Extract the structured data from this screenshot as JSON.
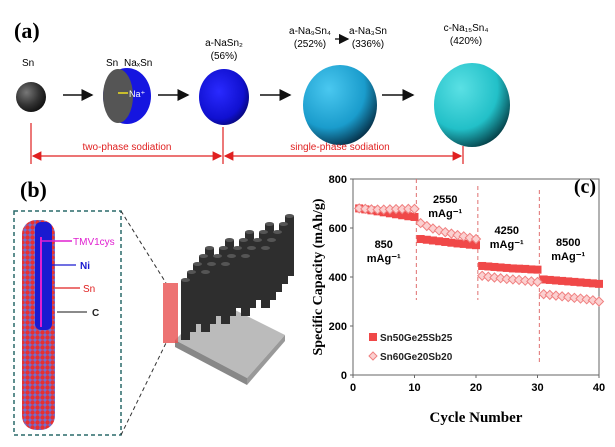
{
  "panel_a": {
    "label": "(a)",
    "sn": "Sn",
    "sn_core": "Sn",
    "naxsn": "NaₓSn",
    "na_ion": "Na⁺",
    "nasn2": "a-NaSn₂",
    "nasn2_pct": "(56%)",
    "na9sn4": "a-Na₉Sn₄",
    "na9sn4_pct": "(252%)",
    "na3sn": "a-Na₃Sn",
    "na3sn_pct": "(336%)",
    "na15sn4": "c-Na₁₅Sn₄",
    "na15sn4_pct": "(420%)",
    "two_phase": "two-phase sodiation",
    "single_phase": "single-phase sodiation",
    "colors": {
      "sn": "#333333",
      "nasn2": "#1010d8",
      "na9sn4": "#1aa6d6",
      "na15sn4": "#26c6cf",
      "bracket": "#e02020"
    }
  },
  "panel_b": {
    "label": "(b)",
    "tmv": "TMV1cys",
    "ni": "Ni",
    "sn": "Sn",
    "c": "C",
    "colors": {
      "tmv": "#e020d0",
      "ni": "#1a1ad0",
      "sn": "#e02020",
      "c": "#222222"
    }
  },
  "chart_data": {
    "type": "scatter",
    "label": "(c)",
    "xlabel": "Cycle Number",
    "ylabel": "Specific Capacity (mAh/g)",
    "xlim": [
      0,
      40
    ],
    "ylim": [
      0,
      800
    ],
    "xticks": [
      "0",
      "10",
      "20",
      "30",
      "40"
    ],
    "yticks": [
      "0",
      "200",
      "400",
      "600",
      "800"
    ],
    "legend_position": "bottom-left",
    "rate_labels": [
      {
        "value": "850",
        "unit": "mAg⁻¹"
      },
      {
        "value": "2550",
        "unit": "mAg⁻¹"
      },
      {
        "value": "4250",
        "unit": "mAg⁻¹"
      },
      {
        "value": "8500",
        "unit": "mAg⁻¹"
      }
    ],
    "rate_boundaries": [
      10.3,
      20.3,
      30.3
    ],
    "x": [
      1,
      2,
      3,
      4,
      5,
      6,
      7,
      8,
      9,
      10,
      11,
      12,
      13,
      14,
      15,
      16,
      17,
      18,
      19,
      20,
      21,
      22,
      23,
      24,
      25,
      26,
      27,
      28,
      29,
      30,
      31,
      32,
      33,
      34,
      35,
      36,
      37,
      38,
      39,
      40
    ],
    "series": [
      {
        "name": "Sn50Ge25Sb25",
        "marker": "square",
        "color": "#f04848",
        "values": [
          680,
          676,
          672,
          668,
          664,
          660,
          656,
          652,
          648,
          645,
          555,
          552,
          549,
          546,
          543,
          540,
          537,
          535,
          532,
          530,
          445,
          443,
          441,
          439,
          437,
          435,
          434,
          433,
          431,
          430,
          390,
          388,
          386,
          384,
          382,
          380,
          378,
          376,
          374,
          372
        ]
      },
      {
        "name": "Sn60Ge20Sb20",
        "marker": "diamond",
        "color": "#f08080",
        "values": [
          680,
          678,
          676,
          675,
          675,
          676,
          677,
          677,
          678,
          678,
          620,
          608,
          598,
          590,
          583,
          577,
          571,
          566,
          560,
          555,
          405,
          401,
          398,
          395,
          392,
          390,
          388,
          385,
          382,
          380,
          330,
          327,
          324,
          321,
          318,
          315,
          312,
          309,
          305,
          300
        ]
      }
    ]
  }
}
